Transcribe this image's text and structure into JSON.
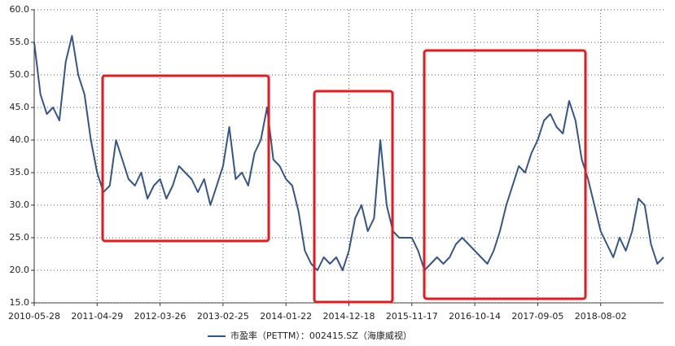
{
  "chart_data": {
    "type": "line",
    "categories": [
      "2010-05-28",
      null,
      null,
      null,
      null,
      null,
      null,
      null,
      null,
      null,
      "2011-04-29",
      null,
      null,
      null,
      null,
      null,
      null,
      null,
      null,
      null,
      "2012-03-26",
      null,
      null,
      null,
      null,
      null,
      null,
      null,
      null,
      null,
      "2013-02-25",
      null,
      null,
      null,
      null,
      null,
      null,
      null,
      null,
      null,
      "2014-01-22",
      null,
      null,
      null,
      null,
      null,
      null,
      null,
      null,
      null,
      "2014-12-18",
      null,
      null,
      null,
      null,
      null,
      null,
      null,
      null,
      null,
      "2015-11-17",
      null,
      null,
      null,
      null,
      null,
      null,
      null,
      null,
      null,
      "2016-10-14",
      null,
      null,
      null,
      null,
      null,
      null,
      null,
      null,
      null,
      "2017-09-05",
      null,
      null,
      null,
      null,
      null,
      null,
      null,
      null,
      null,
      "2018-08-02",
      null,
      null,
      null,
      null,
      null,
      null,
      null,
      null,
      null,
      null
    ],
    "series": [
      {
        "name": "市盈率（PETTM）：002415.SZ（海康威视）",
        "color": "#34558b",
        "values": [
          55,
          47,
          44,
          45,
          43,
          52,
          56,
          50,
          47,
          40,
          35,
          32,
          33,
          40,
          37,
          34,
          33,
          35,
          31,
          33,
          34,
          31,
          33,
          36,
          35,
          34,
          32,
          34,
          30,
          33,
          36,
          42,
          34,
          35,
          33,
          38,
          40,
          45,
          37,
          36,
          34,
          33,
          29,
          23,
          21,
          20,
          22,
          21,
          22,
          20,
          23,
          28,
          30,
          26,
          28,
          40,
          30,
          26,
          25,
          25,
          25,
          23,
          20,
          21,
          22,
          21,
          22,
          24,
          25,
          24,
          23,
          22,
          21,
          23,
          26,
          30,
          33,
          36,
          35,
          38,
          40,
          43,
          44,
          42,
          41,
          46,
          43,
          37,
          34,
          30,
          26,
          24,
          22,
          25,
          23,
          26,
          31,
          30,
          24,
          21,
          22
        ]
      }
    ],
    "ylim": [
      15,
      60
    ],
    "yticks": [
      {
        "value": 15,
        "label": "15.0"
      },
      {
        "value": 20,
        "label": "20.0"
      },
      {
        "value": 25,
        "label": "25.0"
      },
      {
        "value": 30,
        "label": "30.0"
      },
      {
        "value": 35,
        "label": "35.0"
      },
      {
        "value": 40,
        "label": "40.0"
      },
      {
        "value": 45,
        "label": "45.0"
      },
      {
        "value": 50,
        "label": "50.0"
      },
      {
        "value": 55,
        "label": "55.0"
      },
      {
        "value": 60,
        "label": "60.0"
      }
    ],
    "grid": true
  }
}
